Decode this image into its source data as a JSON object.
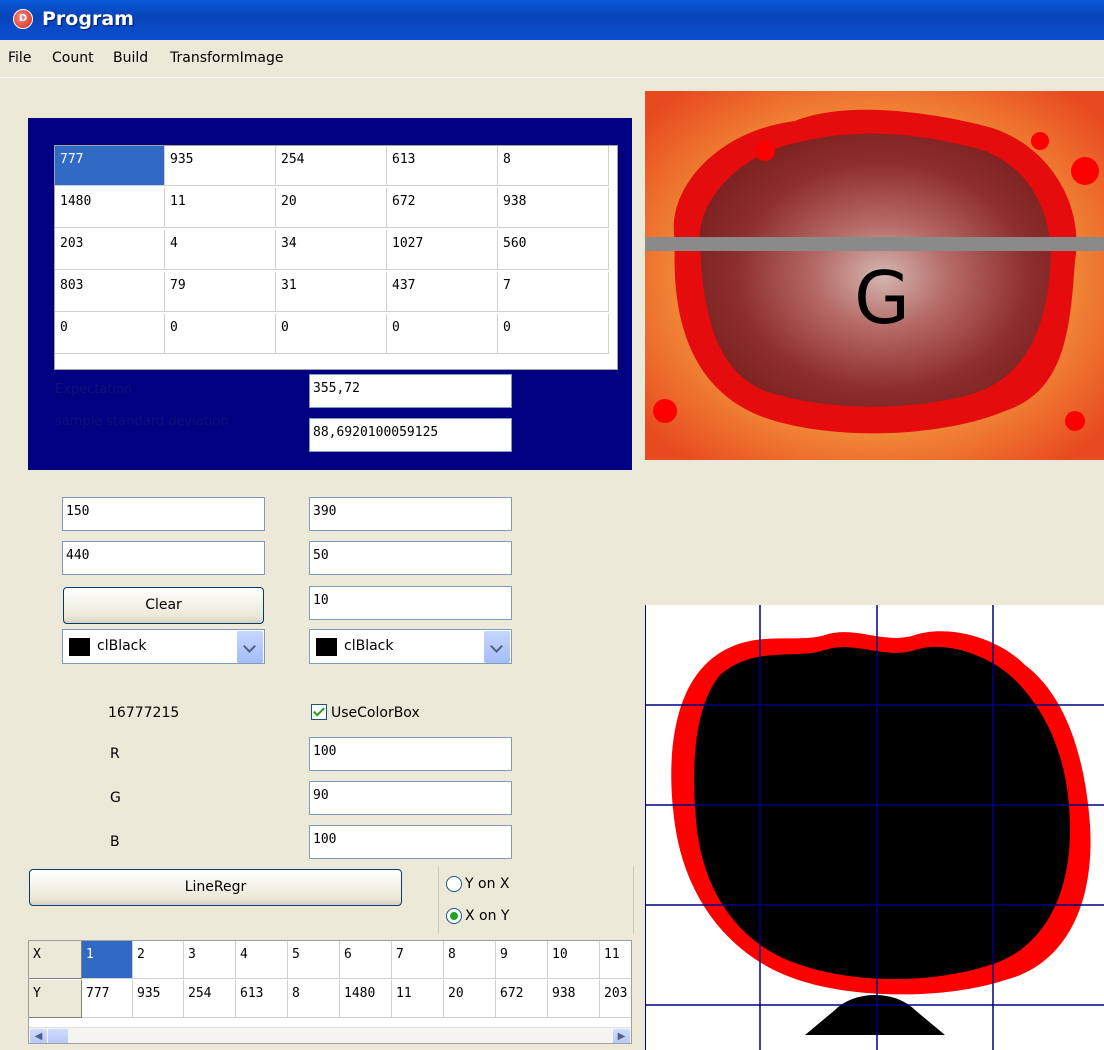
{
  "window": {
    "title": "Program",
    "app_icon": "delphi-app-icon"
  },
  "menu": {
    "items": [
      "File",
      "Count",
      "Build",
      "TransformImage"
    ]
  },
  "matrix": {
    "rows": [
      [
        "777",
        "935",
        "254",
        "613",
        "8"
      ],
      [
        "1480",
        "11",
        "20",
        "672",
        "938"
      ],
      [
        "203",
        "4",
        "34",
        "1027",
        "560"
      ],
      [
        "803",
        "79",
        "31",
        "437",
        "7"
      ],
      [
        "0",
        "0",
        "0",
        "0",
        "0"
      ]
    ],
    "selected_cell": "777"
  },
  "stats": {
    "expectation_label": "Expectation",
    "expectation_value": "355,72",
    "std_label": "sample standard deviation",
    "std_value": "88,6920100059125"
  },
  "inputs": {
    "left1": "150",
    "right1": "390",
    "left2": "440",
    "right2": "50",
    "right3": "10"
  },
  "buttons": {
    "clear": "Clear",
    "line_regr": "LineRegr"
  },
  "color_boxes": {
    "left": "clBlack",
    "right": "clBlack"
  },
  "color_info": {
    "value": "16777215",
    "use_color_box_label": "UseColorBox",
    "use_color_box_checked": true,
    "r_label": "R",
    "r_value": "100",
    "g_label": "G",
    "g_value": "90",
    "b_label": "B",
    "b_value": "100"
  },
  "regression": {
    "y_on_x_label": "Y on X",
    "x_on_y_label": "X on Y",
    "selected": "X on Y"
  },
  "data_grid": {
    "x_label": "X",
    "y_label": "Y",
    "x_values": [
      "1",
      "2",
      "3",
      "4",
      "5",
      "6",
      "7",
      "8",
      "9",
      "10",
      "11"
    ],
    "y_values": [
      "777",
      "935",
      "254",
      "613",
      "8",
      "1480",
      "11",
      "20",
      "672",
      "938",
      "203"
    ]
  },
  "images": {
    "top": {
      "letter": "G",
      "colors": {
        "red": "#ff0000",
        "orange": "#f07028",
        "yellow": "#f6c43e",
        "maroon": "#8c2a2a"
      }
    },
    "bottom": {
      "colors": {
        "red": "#ff0000",
        "black": "#000000",
        "grid": "#000080"
      }
    }
  }
}
